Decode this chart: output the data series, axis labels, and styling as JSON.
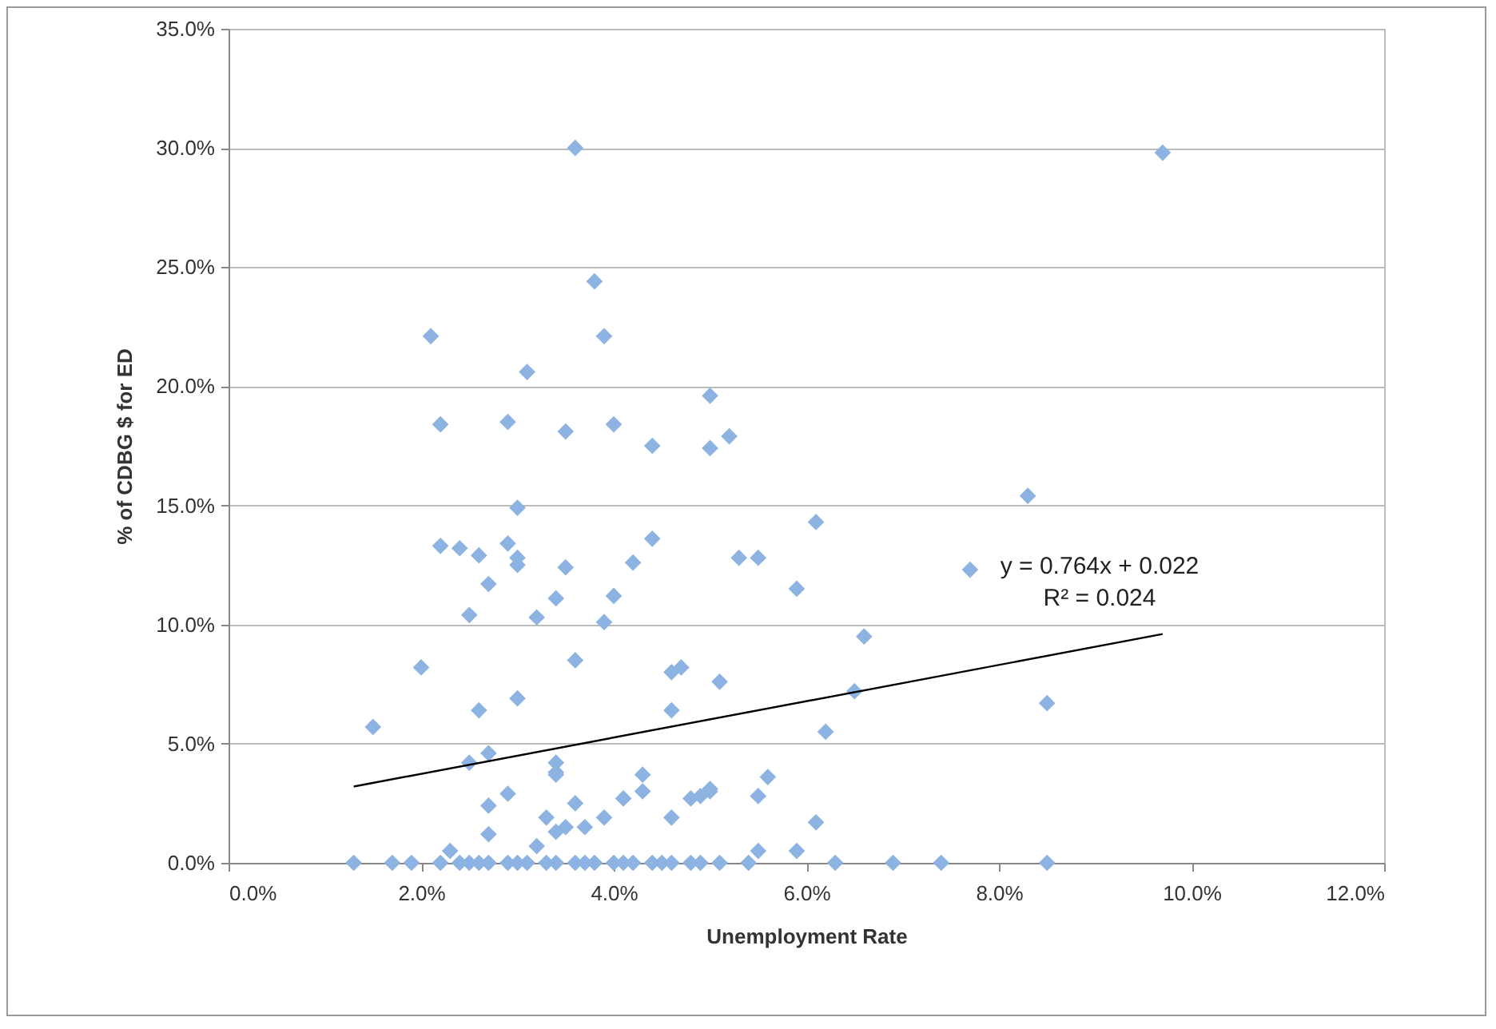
{
  "chart_data": {
    "type": "scatter",
    "xlabel": "Unemployment Rate",
    "ylabel": "% of CDBG $ for ED",
    "xlim": [
      0,
      0.12
    ],
    "ylim": [
      0,
      0.35
    ],
    "xticks": [
      {
        "value": 0,
        "label": "0.0%"
      },
      {
        "value": 0.02,
        "label": "2.0%"
      },
      {
        "value": 0.04,
        "label": "4.0%"
      },
      {
        "value": 0.06,
        "label": "6.0%"
      },
      {
        "value": 0.08,
        "label": "8.0%"
      },
      {
        "value": 0.1,
        "label": "10.0%"
      },
      {
        "value": 0.12,
        "label": "12.0%"
      }
    ],
    "yticks": [
      {
        "value": 0,
        "label": "0.0%"
      },
      {
        "value": 0.05,
        "label": "5.0%"
      },
      {
        "value": 0.1,
        "label": "10.0%"
      },
      {
        "value": 0.15,
        "label": "15.0%"
      },
      {
        "value": 0.2,
        "label": "20.0%"
      },
      {
        "value": 0.25,
        "label": "25.0%"
      },
      {
        "value": 0.3,
        "label": "30.0%"
      },
      {
        "value": 0.35,
        "label": "35.0%"
      }
    ],
    "grid": "y",
    "marker": "diamond",
    "series": [
      {
        "color": "#8db3e2",
        "x": [
          0.013,
          0.017,
          0.019,
          0.022,
          0.024,
          0.025,
          0.026,
          0.027,
          0.029,
          0.03,
          0.031,
          0.033,
          0.034,
          0.036,
          0.037,
          0.038,
          0.04,
          0.041,
          0.042,
          0.044,
          0.045,
          0.046,
          0.048,
          0.049,
          0.051,
          0.054,
          0.063,
          0.069,
          0.074,
          0.085,
          0.036,
          0.097,
          0.038,
          0.021,
          0.039,
          0.031,
          0.05,
          0.022,
          0.029,
          0.035,
          0.04,
          0.044,
          0.05,
          0.052,
          0.03,
          0.022,
          0.024,
          0.026,
          0.029,
          0.03,
          0.03,
          0.035,
          0.042,
          0.044,
          0.027,
          0.04,
          0.034,
          0.025,
          0.032,
          0.039,
          0.036,
          0.02,
          0.046,
          0.047,
          0.051,
          0.026,
          0.03,
          0.046,
          0.015,
          0.025,
          0.027,
          0.034,
          0.034,
          0.027,
          0.029,
          0.036,
          0.034,
          0.041,
          0.043,
          0.043,
          0.046,
          0.048,
          0.05,
          0.049,
          0.039,
          0.027,
          0.033,
          0.034,
          0.035,
          0.037,
          0.032,
          0.023,
          0.083,
          0.061,
          0.053,
          0.055,
          0.059,
          0.077,
          0.066,
          0.065,
          0.062,
          0.085,
          0.056,
          0.055,
          0.05,
          0.061,
          0.055,
          0.059
        ],
        "values": [
          0,
          0,
          0,
          0,
          0,
          0,
          0,
          0,
          0,
          0,
          0,
          0,
          0,
          0,
          0,
          0,
          0,
          0,
          0,
          0,
          0,
          0,
          0,
          0,
          0,
          0,
          0,
          0,
          0,
          0,
          0.3,
          0.298,
          0.244,
          0.221,
          0.221,
          0.206,
          0.196,
          0.184,
          0.185,
          0.181,
          0.184,
          0.175,
          0.174,
          0.179,
          0.149,
          0.133,
          0.132,
          0.129,
          0.134,
          0.128,
          0.125,
          0.124,
          0.126,
          0.136,
          0.117,
          0.112,
          0.111,
          0.104,
          0.103,
          0.101,
          0.085,
          0.082,
          0.08,
          0.082,
          0.076,
          0.064,
          0.069,
          0.064,
          0.057,
          0.042,
          0.046,
          0.038,
          0.042,
          0.024,
          0.029,
          0.025,
          0.037,
          0.027,
          0.037,
          0.03,
          0.019,
          0.027,
          0.031,
          0.028,
          0.019,
          0.012,
          0.019,
          0.013,
          0.015,
          0.015,
          0.007,
          0.005,
          0.154,
          0.143,
          0.128,
          0.128,
          0.115,
          0.123,
          0.095,
          0.072,
          0.055,
          0.067,
          0.036,
          0.028,
          0.03,
          0.017,
          0.005,
          0.005
        ]
      },
      {
        "type": "line",
        "marker": "none",
        "color": "#000000",
        "x": [
          0.013,
          0.097
        ],
        "values": [
          0.032,
          0.096
        ]
      }
    ],
    "annotations": [
      "y = 0.764x + 0.022",
      "R² = 0.024"
    ]
  }
}
